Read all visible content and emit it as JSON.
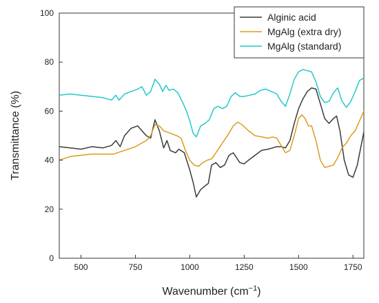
{
  "chart_data": {
    "type": "line",
    "title": "",
    "xlabel": "Wavenumber",
    "xlabel_unit": "(cm",
    "xlabel_sup": "−1",
    "xlabel_close": ")",
    "ylabel": "Transmittance (%)",
    "xlim": [
      400,
      1800
    ],
    "ylim": [
      0,
      100
    ],
    "xticks": [
      500,
      750,
      1000,
      1250,
      1500,
      1750
    ],
    "yticks": [
      0,
      20,
      40,
      60,
      80,
      100
    ],
    "grid": false,
    "legend_position": "top-right",
    "series": [
      {
        "name": "Alginic acid",
        "color": "#3a3a3a",
        "points": [
          [
            400,
            45.5
          ],
          [
            450,
            45.0
          ],
          [
            500,
            44.5
          ],
          [
            550,
            45.5
          ],
          [
            600,
            45.0
          ],
          [
            640,
            46.0
          ],
          [
            660,
            48.0
          ],
          [
            680,
            45.5
          ],
          [
            700,
            50.0
          ],
          [
            730,
            53.0
          ],
          [
            760,
            54.0
          ],
          [
            780,
            52.0
          ],
          [
            800,
            50.0
          ],
          [
            820,
            49.0
          ],
          [
            840,
            56.5
          ],
          [
            860,
            52.0
          ],
          [
            880,
            45.0
          ],
          [
            895,
            48.0
          ],
          [
            910,
            44.0
          ],
          [
            935,
            43.0
          ],
          [
            950,
            44.5
          ],
          [
            975,
            43.0
          ],
          [
            1000,
            36.0
          ],
          [
            1015,
            31.0
          ],
          [
            1030,
            25.0
          ],
          [
            1050,
            28.0
          ],
          [
            1070,
            29.5
          ],
          [
            1085,
            30.5
          ],
          [
            1100,
            38.0
          ],
          [
            1120,
            39.0
          ],
          [
            1140,
            37.0
          ],
          [
            1160,
            38.0
          ],
          [
            1180,
            42.0
          ],
          [
            1200,
            43.0
          ],
          [
            1230,
            39.0
          ],
          [
            1250,
            38.5
          ],
          [
            1270,
            40.0
          ],
          [
            1300,
            42.0
          ],
          [
            1330,
            44.0
          ],
          [
            1360,
            44.5
          ],
          [
            1380,
            45.0
          ],
          [
            1400,
            45.5
          ],
          [
            1420,
            45.5
          ],
          [
            1440,
            45.0
          ],
          [
            1460,
            48.0
          ],
          [
            1480,
            55.0
          ],
          [
            1500,
            61.0
          ],
          [
            1520,
            65.0
          ],
          [
            1540,
            68.0
          ],
          [
            1560,
            69.5
          ],
          [
            1580,
            69.0
          ],
          [
            1600,
            63.0
          ],
          [
            1620,
            57.0
          ],
          [
            1640,
            55.0
          ],
          [
            1660,
            57.0
          ],
          [
            1675,
            58.0
          ],
          [
            1690,
            52.0
          ],
          [
            1710,
            40.0
          ],
          [
            1730,
            34.0
          ],
          [
            1750,
            33.0
          ],
          [
            1770,
            38.0
          ],
          [
            1790,
            47.0
          ],
          [
            1800,
            51.5
          ]
        ]
      },
      {
        "name": "MgAlg (extra dry)",
        "color": "#dc9b1e",
        "points": [
          [
            400,
            40.0
          ],
          [
            450,
            41.5
          ],
          [
            500,
            42.0
          ],
          [
            550,
            42.5
          ],
          [
            600,
            42.5
          ],
          [
            650,
            42.5
          ],
          [
            700,
            44.0
          ],
          [
            750,
            45.5
          ],
          [
            800,
            48.0
          ],
          [
            820,
            50.0
          ],
          [
            840,
            54.5
          ],
          [
            860,
            54.0
          ],
          [
            880,
            52.0
          ],
          [
            910,
            51.0
          ],
          [
            940,
            50.0
          ],
          [
            960,
            49.0
          ],
          [
            980,
            44.0
          ],
          [
            1000,
            40.0
          ],
          [
            1020,
            38.0
          ],
          [
            1040,
            37.5
          ],
          [
            1060,
            39.0
          ],
          [
            1080,
            40.0
          ],
          [
            1100,
            40.5
          ],
          [
            1120,
            43.0
          ],
          [
            1150,
            47.0
          ],
          [
            1180,
            51.0
          ],
          [
            1200,
            54.0
          ],
          [
            1220,
            55.5
          ],
          [
            1240,
            54.5
          ],
          [
            1270,
            52.0
          ],
          [
            1300,
            50.0
          ],
          [
            1330,
            49.5
          ],
          [
            1360,
            49.0
          ],
          [
            1380,
            49.5
          ],
          [
            1400,
            49.0
          ],
          [
            1420,
            46.0
          ],
          [
            1440,
            43.0
          ],
          [
            1460,
            44.0
          ],
          [
            1480,
            50.0
          ],
          [
            1500,
            57.0
          ],
          [
            1515,
            58.5
          ],
          [
            1530,
            57.0
          ],
          [
            1545,
            54.0
          ],
          [
            1560,
            54.0
          ],
          [
            1580,
            48.0
          ],
          [
            1600,
            40.0
          ],
          [
            1620,
            37.0
          ],
          [
            1640,
            37.5
          ],
          [
            1660,
            38.0
          ],
          [
            1680,
            41.0
          ],
          [
            1700,
            45.0
          ],
          [
            1720,
            47.0
          ],
          [
            1740,
            50.0
          ],
          [
            1760,
            52.0
          ],
          [
            1780,
            56.0
          ],
          [
            1800,
            60.0
          ]
        ]
      },
      {
        "name": "MgAlg (standard)",
        "color": "#23c8c8",
        "points": [
          [
            400,
            66.5
          ],
          [
            450,
            67.0
          ],
          [
            500,
            66.5
          ],
          [
            550,
            66.0
          ],
          [
            600,
            65.5
          ],
          [
            640,
            64.5
          ],
          [
            660,
            66.5
          ],
          [
            675,
            64.5
          ],
          [
            700,
            67.0
          ],
          [
            730,
            68.0
          ],
          [
            760,
            69.0
          ],
          [
            780,
            70.0
          ],
          [
            800,
            66.5
          ],
          [
            820,
            68.0
          ],
          [
            840,
            73.0
          ],
          [
            860,
            71.0
          ],
          [
            875,
            68.0
          ],
          [
            890,
            70.5
          ],
          [
            905,
            68.5
          ],
          [
            925,
            69.0
          ],
          [
            945,
            67.5
          ],
          [
            965,
            64.0
          ],
          [
            985,
            60.0
          ],
          [
            1000,
            56.0
          ],
          [
            1015,
            51.0
          ],
          [
            1030,
            49.5
          ],
          [
            1050,
            54.0
          ],
          [
            1070,
            55.0
          ],
          [
            1090,
            56.5
          ],
          [
            1110,
            61.0
          ],
          [
            1130,
            62.0
          ],
          [
            1150,
            61.0
          ],
          [
            1170,
            62.0
          ],
          [
            1190,
            66.0
          ],
          [
            1210,
            67.5
          ],
          [
            1230,
            66.0
          ],
          [
            1250,
            66.0
          ],
          [
            1275,
            66.5
          ],
          [
            1300,
            67.0
          ],
          [
            1325,
            68.5
          ],
          [
            1350,
            69.0
          ],
          [
            1375,
            68.0
          ],
          [
            1400,
            67.0
          ],
          [
            1420,
            64.0
          ],
          [
            1440,
            62.0
          ],
          [
            1460,
            67.0
          ],
          [
            1480,
            73.0
          ],
          [
            1500,
            76.0
          ],
          [
            1520,
            77.0
          ],
          [
            1540,
            76.5
          ],
          [
            1560,
            76.0
          ],
          [
            1580,
            72.0
          ],
          [
            1600,
            66.0
          ],
          [
            1620,
            63.5
          ],
          [
            1640,
            64.0
          ],
          [
            1660,
            67.5
          ],
          [
            1680,
            69.5
          ],
          [
            1700,
            64.0
          ],
          [
            1720,
            61.5
          ],
          [
            1740,
            64.0
          ],
          [
            1760,
            68.0
          ],
          [
            1780,
            72.5
          ],
          [
            1800,
            73.5
          ]
        ]
      }
    ]
  }
}
